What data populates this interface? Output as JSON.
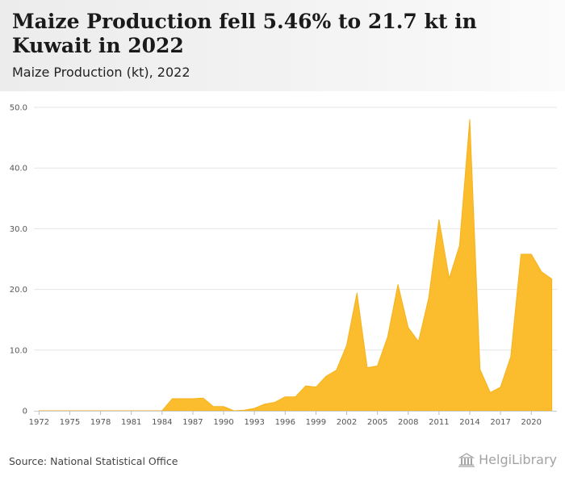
{
  "header": {
    "title": "Maize Production fell 5.46% to 21.7 kt in Kuwait in 2022",
    "subtitle": "Maize Production (kt), 2022"
  },
  "footer": {
    "source": "Source: National Statistical Office",
    "logo_text": "HelgiLibrary"
  },
  "colors": {
    "area_fill": "#fbbc2e",
    "area_stroke": "#f6b21a",
    "grid": "#e6e6e6"
  },
  "chart_data": {
    "type": "area",
    "x": [
      1972,
      1973,
      1974,
      1975,
      1976,
      1977,
      1978,
      1979,
      1980,
      1981,
      1982,
      1983,
      1984,
      1985,
      1986,
      1987,
      1988,
      1989,
      1990,
      1991,
      1992,
      1993,
      1994,
      1995,
      1996,
      1997,
      1998,
      1999,
      2000,
      2001,
      2002,
      2003,
      2004,
      2005,
      2006,
      2007,
      2008,
      2009,
      2010,
      2011,
      2012,
      2013,
      2014,
      2015,
      2016,
      2017,
      2018,
      2019,
      2020,
      2021,
      2022
    ],
    "values": [
      0,
      0,
      0,
      0,
      0,
      0,
      0,
      0,
      0,
      0,
      0,
      0,
      0,
      2.0,
      2.0,
      2.0,
      2.1,
      0.7,
      0.7,
      0,
      0.1,
      0.4,
      1.1,
      1.4,
      2.3,
      2.3,
      4.1,
      3.9,
      5.7,
      6.7,
      10.8,
      19.4,
      7.1,
      7.4,
      12.2,
      20.8,
      13.7,
      11.4,
      18.6,
      31.5,
      21.8,
      27.2,
      48.0,
      6.8,
      3.0,
      3.9,
      8.9,
      25.8,
      25.8,
      22.9,
      21.7
    ],
    "x_ticks": [
      "1972",
      "1975",
      "1978",
      "1981",
      "1984",
      "1987",
      "1990",
      "1993",
      "1996",
      "1999",
      "2002",
      "2005",
      "2008",
      "2011",
      "2014",
      "2017",
      "2020"
    ],
    "y_ticks": [
      "0",
      "10.0",
      "20.0",
      "30.0",
      "40.0",
      "50.0"
    ],
    "ylim": [
      0,
      50
    ],
    "xlim": [
      1971.5,
      2022.5
    ],
    "grid": true
  }
}
